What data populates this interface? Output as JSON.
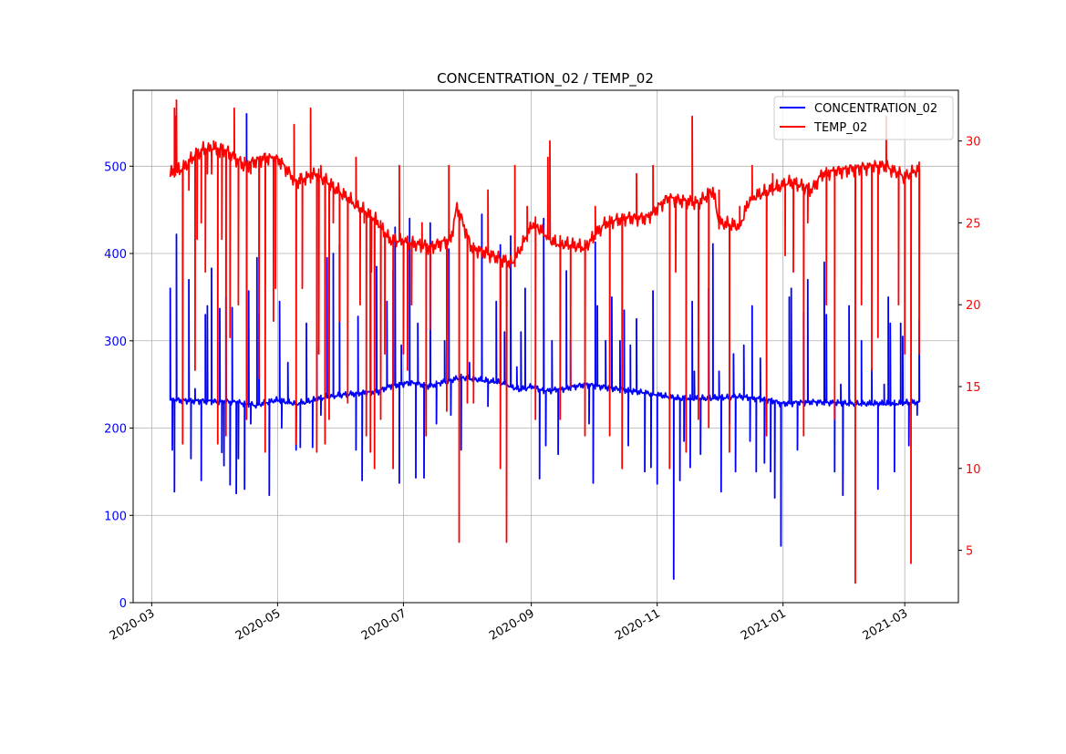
{
  "chart_data": {
    "type": "line",
    "title": "CONCENTRATION_02 / TEMP_02",
    "x_unit": "days since 2020-03-01",
    "x_origin": "2020-03-01",
    "xlim": [
      -9,
      391
    ],
    "x_ticks": [
      {
        "day": 0,
        "label": "2020-03"
      },
      {
        "day": 61,
        "label": "2020-05"
      },
      {
        "day": 122,
        "label": "2020-07"
      },
      {
        "day": 184,
        "label": "2020-09"
      },
      {
        "day": 245,
        "label": "2020-11"
      },
      {
        "day": 306,
        "label": "2021-01"
      },
      {
        "day": 365,
        "label": "2021-03"
      }
    ],
    "grid": true,
    "legend": {
      "placement": "top-right",
      "entries": [
        "CONCENTRATION_02",
        "TEMP_02"
      ]
    },
    "left_axis": {
      "ylim": [
        0,
        587
      ],
      "ticks": [
        0,
        100,
        200,
        300,
        400,
        500
      ],
      "color": "#0000ff"
    },
    "right_axis": {
      "ylim": [
        1.8,
        33.1
      ],
      "ticks": [
        5,
        10,
        15,
        20,
        25,
        30
      ],
      "color": "#ff0000"
    },
    "series": [
      {
        "name": "CONCENTRATION_02",
        "axis": "left",
        "color": "#0000ff",
        "baseline": [
          [
            9,
            232
          ],
          [
            40,
            230
          ],
          [
            50,
            226
          ],
          [
            60,
            232
          ],
          [
            70,
            228
          ],
          [
            75,
            230
          ],
          [
            85,
            236
          ],
          [
            100,
            240
          ],
          [
            110,
            242
          ],
          [
            115,
            248
          ],
          [
            125,
            252
          ],
          [
            135,
            248
          ],
          [
            140,
            252
          ],
          [
            150,
            258
          ],
          [
            160,
            255
          ],
          [
            170,
            252
          ],
          [
            178,
            244
          ],
          [
            185,
            248
          ],
          [
            190,
            242
          ],
          [
            200,
            245
          ],
          [
            210,
            250
          ],
          [
            225,
            245
          ],
          [
            240,
            240
          ],
          [
            255,
            234
          ],
          [
            270,
            234
          ],
          [
            285,
            236
          ],
          [
            300,
            232
          ],
          [
            305,
            228
          ],
          [
            320,
            230
          ],
          [
            340,
            228
          ],
          [
            360,
            228
          ],
          [
            372,
            230
          ]
        ],
        "spikes": [
          [
            9,
            360
          ],
          [
            10,
            175
          ],
          [
            11,
            127
          ],
          [
            12,
            422
          ],
          [
            18,
            370
          ],
          [
            19,
            165
          ],
          [
            21,
            245
          ],
          [
            24,
            140
          ],
          [
            26,
            330
          ],
          [
            27,
            340
          ],
          [
            29,
            383
          ],
          [
            31,
            230
          ],
          [
            33,
            337
          ],
          [
            34,
            172
          ],
          [
            35,
            157
          ],
          [
            36,
            350
          ],
          [
            38,
            135
          ],
          [
            39,
            338
          ],
          [
            41,
            125
          ],
          [
            42,
            165
          ],
          [
            45,
            130
          ],
          [
            46,
            560
          ],
          [
            47,
            357
          ],
          [
            48,
            205
          ],
          [
            51,
            395
          ],
          [
            52,
            330
          ],
          [
            57,
            123
          ],
          [
            62,
            345
          ],
          [
            63,
            200
          ],
          [
            66,
            275
          ],
          [
            70,
            175
          ],
          [
            72,
            178
          ],
          [
            75,
            320
          ],
          [
            78,
            178
          ],
          [
            80,
            295
          ],
          [
            82,
            215
          ],
          [
            85,
            395
          ],
          [
            88,
            400
          ],
          [
            91,
            410
          ],
          [
            99,
            175
          ],
          [
            100,
            328
          ],
          [
            102,
            140
          ],
          [
            106,
            440
          ],
          [
            109,
            385
          ],
          [
            114,
            345
          ],
          [
            117,
            380
          ],
          [
            118,
            430
          ],
          [
            120,
            137
          ],
          [
            121,
            295
          ],
          [
            125,
            440
          ],
          [
            128,
            143
          ],
          [
            129,
            320
          ],
          [
            132,
            143
          ],
          [
            135,
            435
          ],
          [
            138,
            205
          ],
          [
            142,
            300
          ],
          [
            144,
            405
          ],
          [
            145,
            215
          ],
          [
            150,
            175
          ],
          [
            154,
            275
          ],
          [
            160,
            445
          ],
          [
            163,
            225
          ],
          [
            167,
            345
          ],
          [
            169,
            410
          ],
          [
            171,
            310
          ],
          [
            174,
            420
          ],
          [
            177,
            270
          ],
          [
            179,
            310
          ],
          [
            181,
            360
          ],
          [
            188,
            142
          ],
          [
            190,
            440
          ],
          [
            191,
            180
          ],
          [
            194,
            300
          ],
          [
            197,
            170
          ],
          [
            201,
            380
          ],
          [
            203,
            300
          ],
          [
            212,
            205
          ],
          [
            214,
            137
          ],
          [
            215,
            413
          ],
          [
            216,
            340
          ],
          [
            220,
            300
          ],
          [
            223,
            350
          ],
          [
            227,
            300
          ],
          [
            229,
            335
          ],
          [
            231,
            180
          ],
          [
            232,
            295
          ],
          [
            235,
            325
          ],
          [
            239,
            150
          ],
          [
            242,
            155
          ],
          [
            243,
            357
          ],
          [
            245,
            136
          ],
          [
            247,
            240
          ],
          [
            253,
            27
          ],
          [
            256,
            140
          ],
          [
            258,
            185
          ],
          [
            261,
            155
          ],
          [
            262,
            345
          ],
          [
            263,
            265
          ],
          [
            266,
            170
          ],
          [
            270,
            360
          ],
          [
            272,
            411
          ],
          [
            275,
            265
          ],
          [
            276,
            127
          ],
          [
            280,
            205
          ],
          [
            282,
            285
          ],
          [
            283,
            150
          ],
          [
            287,
            295
          ],
          [
            290,
            185
          ],
          [
            291,
            340
          ],
          [
            293,
            150
          ],
          [
            295,
            280
          ],
          [
            297,
            160
          ],
          [
            300,
            150
          ],
          [
            302,
            120
          ],
          [
            305,
            65
          ],
          [
            309,
            350
          ],
          [
            310,
            360
          ],
          [
            313,
            175
          ],
          [
            316,
            332
          ],
          [
            318,
            370
          ],
          [
            326,
            390
          ],
          [
            327,
            330
          ],
          [
            331,
            150
          ],
          [
            334,
            250
          ],
          [
            335,
            123
          ],
          [
            338,
            340
          ],
          [
            344,
            300
          ],
          [
            349,
            268
          ],
          [
            352,
            130
          ],
          [
            355,
            250
          ],
          [
            357,
            350
          ],
          [
            358,
            320
          ],
          [
            360,
            150
          ],
          [
            363,
            320
          ],
          [
            364,
            305
          ],
          [
            367,
            180
          ],
          [
            371,
            215
          ],
          [
            372,
            325
          ]
        ]
      },
      {
        "name": "TEMP_02",
        "axis": "right",
        "color": "#ff0000",
        "baseline": [
          [
            9,
            28
          ],
          [
            15,
            28.3
          ],
          [
            20,
            29
          ],
          [
            25,
            29.5
          ],
          [
            35,
            29.5
          ],
          [
            45,
            28.5
          ],
          [
            55,
            29
          ],
          [
            62,
            28.8
          ],
          [
            70,
            27.5
          ],
          [
            80,
            28
          ],
          [
            90,
            27
          ],
          [
            100,
            26
          ],
          [
            110,
            25
          ],
          [
            115,
            24
          ],
          [
            125,
            23.8
          ],
          [
            135,
            23.5
          ],
          [
            145,
            24
          ],
          [
            148,
            26
          ],
          [
            155,
            23.5
          ],
          [
            165,
            23
          ],
          [
            175,
            22.5
          ],
          [
            185,
            25
          ],
          [
            195,
            23.8
          ],
          [
            210,
            23.5
          ],
          [
            220,
            25
          ],
          [
            230,
            25.3
          ],
          [
            240,
            25.3
          ],
          [
            250,
            26.5
          ],
          [
            265,
            26.2
          ],
          [
            272,
            27
          ],
          [
            275,
            25
          ],
          [
            285,
            24.8
          ],
          [
            290,
            26.5
          ],
          [
            300,
            27
          ],
          [
            310,
            27.5
          ],
          [
            320,
            27
          ],
          [
            325,
            28
          ],
          [
            340,
            28.3
          ],
          [
            355,
            28.5
          ],
          [
            365,
            27.8
          ],
          [
            372,
            28.3
          ]
        ],
        "spikes": [
          [
            11,
            32
          ],
          [
            11.5,
            31.5
          ],
          [
            12,
            32.5
          ],
          [
            15,
            11.5
          ],
          [
            18,
            27
          ],
          [
            21,
            16
          ],
          [
            22,
            24
          ],
          [
            24,
            25
          ],
          [
            26,
            22
          ],
          [
            27,
            28
          ],
          [
            29,
            28
          ],
          [
            30,
            30
          ],
          [
            32,
            11.5
          ],
          [
            33,
            29
          ],
          [
            34,
            24
          ],
          [
            36,
            12
          ],
          [
            38,
            18
          ],
          [
            40,
            32
          ],
          [
            42,
            20
          ],
          [
            45,
            29
          ],
          [
            46,
            13
          ],
          [
            48,
            28
          ],
          [
            52,
            15.5
          ],
          [
            55,
            11
          ],
          [
            59,
            19
          ],
          [
            60,
            21
          ],
          [
            69,
            31
          ],
          [
            70,
            11.5
          ],
          [
            72,
            28
          ],
          [
            73,
            21
          ],
          [
            77,
            32
          ],
          [
            80,
            11
          ],
          [
            81,
            17
          ],
          [
            82,
            28.5
          ],
          [
            84,
            11.5
          ],
          [
            86,
            13
          ],
          [
            88,
            25
          ],
          [
            91,
            19
          ],
          [
            95,
            14
          ],
          [
            99,
            29
          ],
          [
            101,
            20
          ],
          [
            103,
            25
          ],
          [
            104,
            12
          ],
          [
            106,
            11
          ],
          [
            106.5,
            22
          ],
          [
            108,
            10
          ],
          [
            111,
            13
          ],
          [
            113,
            17
          ],
          [
            117,
            10
          ],
          [
            120,
            28.5
          ],
          [
            122,
            17
          ],
          [
            124,
            16
          ],
          [
            126,
            20
          ],
          [
            131,
            25
          ],
          [
            133,
            12
          ],
          [
            135,
            18.5
          ],
          [
            143,
            13.5
          ],
          [
            144,
            28.5
          ],
          [
            149,
            5.5
          ],
          [
            153,
            14
          ],
          [
            156,
            14
          ],
          [
            163,
            27
          ],
          [
            169,
            10
          ],
          [
            172,
            5.5
          ],
          [
            176,
            28.5
          ],
          [
            182,
            26
          ],
          [
            186,
            13
          ],
          [
            192,
            29
          ],
          [
            193,
            30
          ],
          [
            198,
            13
          ],
          [
            203,
            15
          ],
          [
            210,
            12
          ],
          [
            215,
            26
          ],
          [
            222,
            12
          ],
          [
            228,
            10
          ],
          [
            235,
            28
          ],
          [
            243,
            28.5
          ],
          [
            251,
            10
          ],
          [
            254,
            22
          ],
          [
            259,
            11
          ],
          [
            262,
            31.5
          ],
          [
            265,
            13
          ],
          [
            270,
            12.5
          ],
          [
            275,
            27
          ],
          [
            280,
            11
          ],
          [
            285,
            26
          ],
          [
            291,
            28.5
          ],
          [
            298,
            12
          ],
          [
            301,
            28
          ],
          [
            307,
            23
          ],
          [
            311,
            22
          ],
          [
            316,
            12
          ],
          [
            318,
            25
          ],
          [
            320,
            27
          ],
          [
            327,
            20
          ],
          [
            331,
            13
          ],
          [
            338,
            28
          ],
          [
            341,
            3
          ],
          [
            344,
            20
          ],
          [
            349,
            16
          ],
          [
            352,
            18
          ],
          [
            356,
            31.5
          ],
          [
            362,
            20
          ],
          [
            365,
            17
          ],
          [
            368,
            4.2
          ],
          [
            372,
            17
          ]
        ]
      }
    ]
  }
}
